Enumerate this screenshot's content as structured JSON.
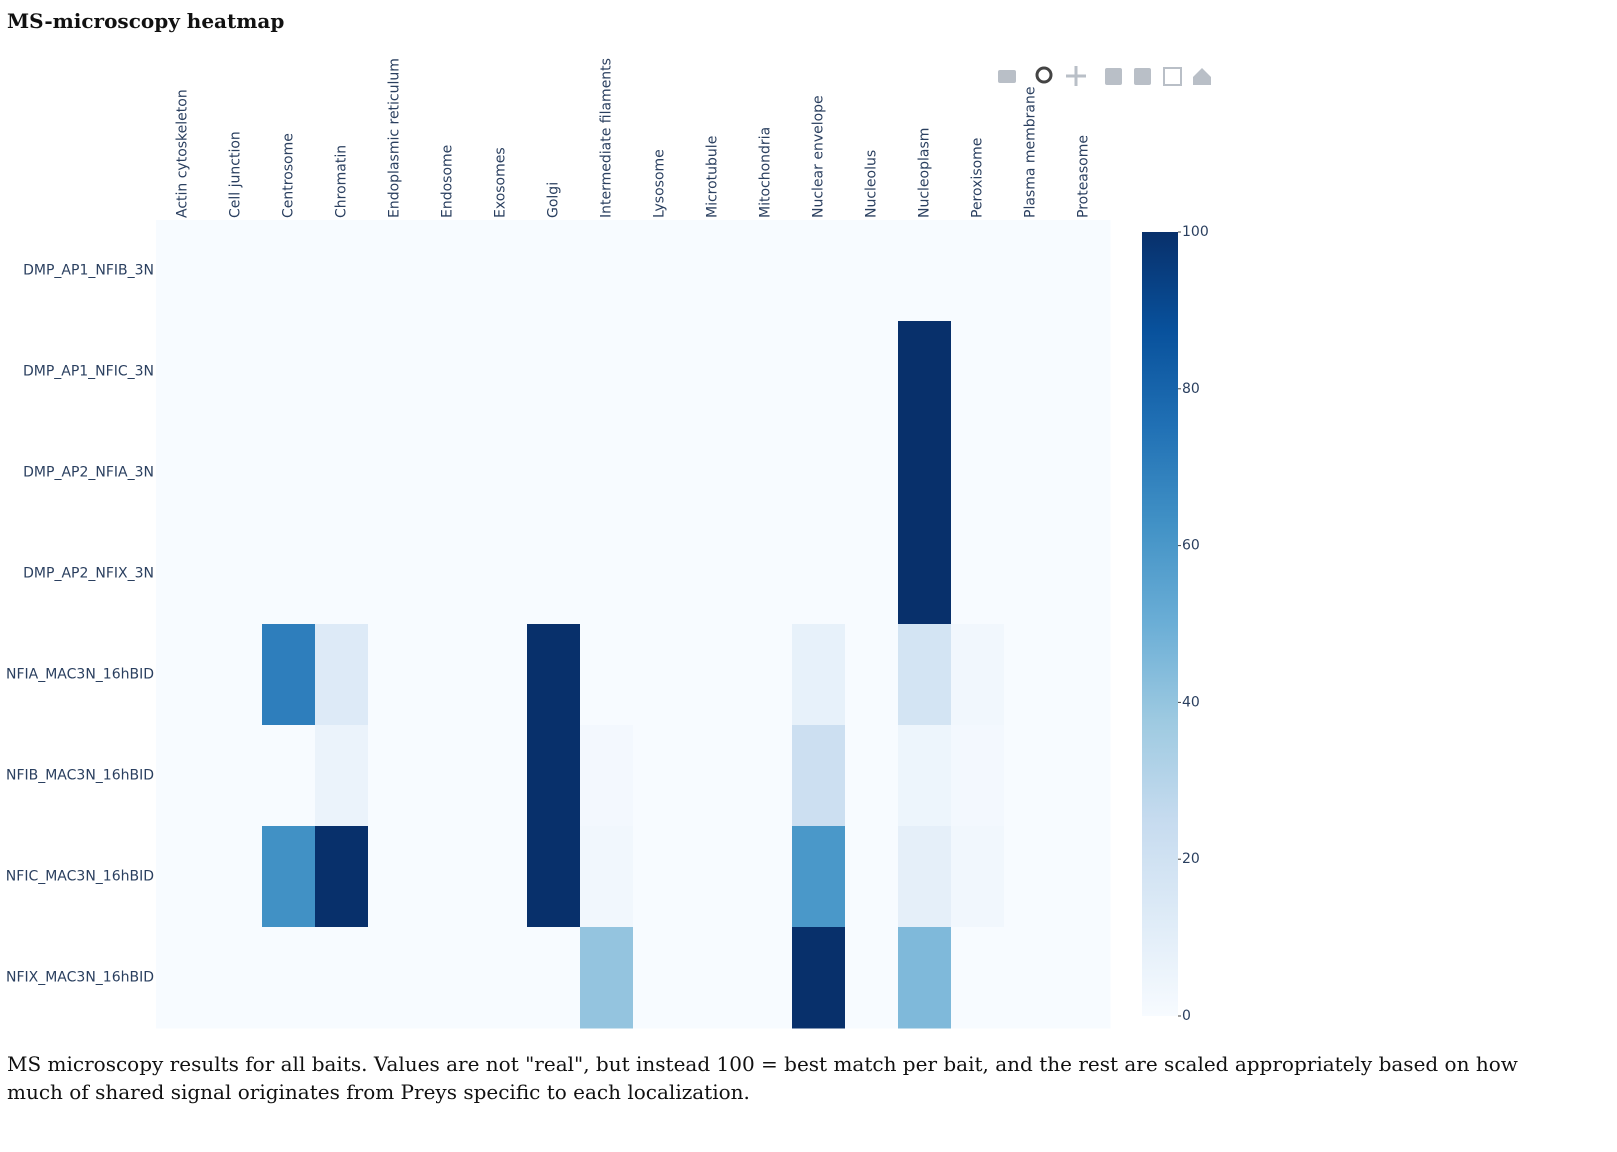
{
  "chart_data": {
    "type": "heatmap",
    "title": "MS-microscopy heatmap",
    "caption": "MS microscopy results for all baits. Values are not \"real\", but instead 100 = best match per bait, and the rest are scaled appropriately based on how much of shared signal originates from Preys specific to each localization.",
    "x": [
      "Actin cytoskeleton",
      "Cell junction",
      "Centrosome",
      "Chromatin",
      "Endoplasmic reticulum",
      "Endosome",
      "Exosomes",
      "Golgi",
      "Intermediate filaments",
      "Lysosome",
      "Microtubule",
      "Mitochondria",
      "Nuclear envelope",
      "Nucleolus",
      "Nucleoplasm",
      "Peroxisome",
      "Plasma membrane",
      "Proteasome"
    ],
    "y": [
      "DMP_AP1_NFIB_3N",
      "DMP_AP1_NFIC_3N",
      "DMP_AP2_NFIA_3N",
      "DMP_AP2_NFIX_3N",
      "NFIA_MAC3N_16hBID",
      "NFIB_MAC3N_16hBID",
      "NFIC_MAC3N_16hBID",
      "NFIX_MAC3N_16hBID"
    ],
    "z": [
      [
        0,
        0,
        0,
        0,
        0,
        0,
        0,
        0,
        0,
        0,
        0,
        0,
        0,
        0,
        0,
        0,
        0,
        0
      ],
      [
        0,
        0,
        0,
        0,
        0,
        0,
        0,
        0,
        0,
        0,
        0,
        0,
        0,
        0,
        100,
        0,
        0,
        0
      ],
      [
        0,
        0,
        0,
        0,
        0,
        0,
        0,
        0,
        0,
        0,
        0,
        0,
        0,
        0,
        100,
        0,
        0,
        0
      ],
      [
        0,
        0,
        0,
        0,
        0,
        0,
        0,
        0,
        0,
        0,
        0,
        0,
        0,
        0,
        100,
        0,
        0,
        0
      ],
      [
        0,
        0,
        70,
        13,
        0,
        0,
        0,
        100,
        0,
        0,
        0,
        0,
        8,
        0,
        18,
        3,
        0,
        0
      ],
      [
        0,
        0,
        0,
        6,
        0,
        0,
        0,
        100,
        2,
        0,
        0,
        0,
        22,
        0,
        5,
        2,
        0,
        0
      ],
      [
        0,
        0,
        63,
        100,
        0,
        0,
        0,
        100,
        3,
        0,
        0,
        0,
        60,
        0,
        9,
        3,
        0,
        0
      ],
      [
        0,
        0,
        0,
        0,
        0,
        0,
        0,
        0,
        40,
        0,
        0,
        0,
        100,
        0,
        45,
        0,
        0,
        0
      ]
    ],
    "zlim": [
      0,
      100
    ],
    "zticks": [
      0,
      20,
      40,
      60,
      80,
      100
    ],
    "colorscale": [
      "#f7fbff",
      "#deebf7",
      "#c6dbef",
      "#9ecae1",
      "#6baed6",
      "#4292c6",
      "#2171b5",
      "#08519c",
      "#08306b"
    ]
  }
}
